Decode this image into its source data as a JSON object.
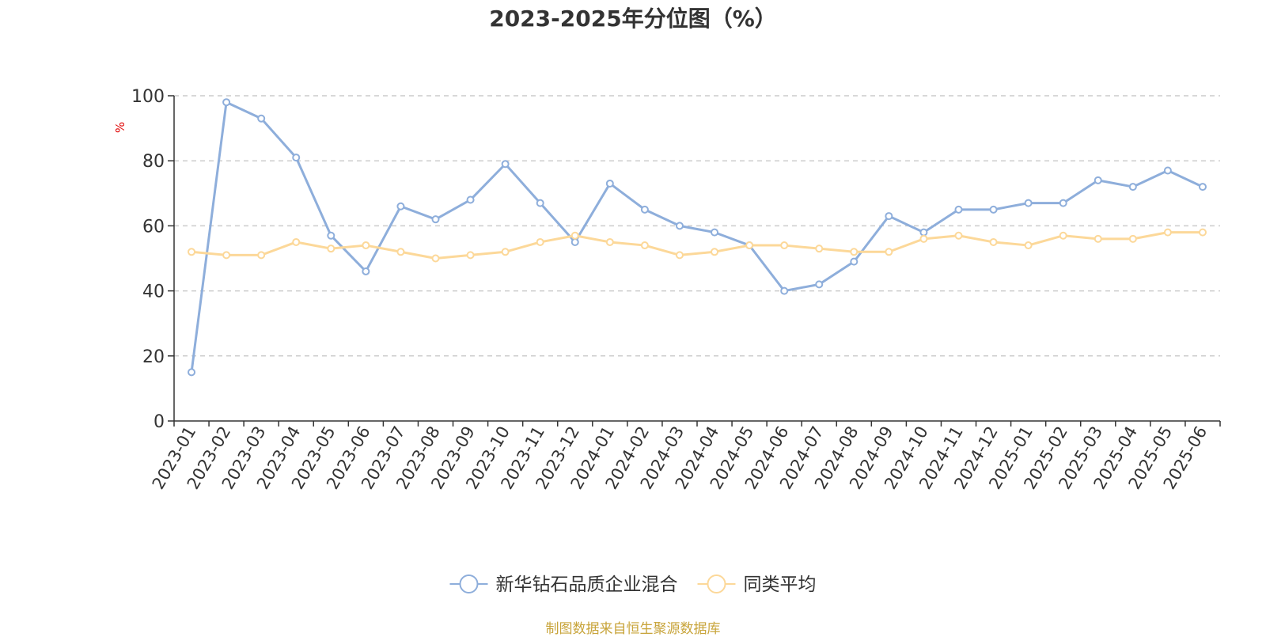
{
  "chart_data": {
    "type": "line",
    "title": "2023-2025年分位图（%）",
    "ylabel": "%",
    "ylim": [
      0,
      100
    ],
    "yticks": [
      0,
      20,
      40,
      60,
      80,
      100
    ],
    "grid": true,
    "legend_position": "bottom-center",
    "categories": [
      "2023-01",
      "2023-02",
      "2023-03",
      "2023-04",
      "2023-05",
      "2023-06",
      "2023-07",
      "2023-08",
      "2023-09",
      "2023-10",
      "2023-11",
      "2023-12",
      "2024-01",
      "2024-02",
      "2024-03",
      "2024-04",
      "2024-05",
      "2024-06",
      "2024-07",
      "2024-08",
      "2024-09",
      "2024-10",
      "2024-11",
      "2024-12",
      "2025-01",
      "2025-02",
      "2025-03",
      "2025-04",
      "2025-05",
      "2025-06"
    ],
    "series": [
      {
        "name": "新华钻石品质企业混合",
        "color": "#8eaedb",
        "values": [
          15,
          98,
          93,
          81,
          57,
          46,
          66,
          62,
          68,
          79,
          67,
          55,
          73,
          65,
          60,
          58,
          54,
          40,
          42,
          49,
          63,
          58,
          65,
          65,
          67,
          67,
          74,
          72,
          77,
          72
        ]
      },
      {
        "name": "同类平均",
        "color": "#fcd899",
        "values": [
          52,
          51,
          51,
          55,
          53,
          54,
          52,
          50,
          51,
          52,
          55,
          57,
          55,
          54,
          51,
          52,
          54,
          54,
          53,
          52,
          52,
          56,
          57,
          55,
          54,
          57,
          56,
          56,
          58,
          58
        ]
      }
    ]
  },
  "source": "制图数据来自恒生聚源数据库",
  "colors": {
    "title": "#333333",
    "axis": "#333333",
    "ylabel": "#e00000",
    "grid": "#cccccc",
    "source": "#c8a43a"
  }
}
